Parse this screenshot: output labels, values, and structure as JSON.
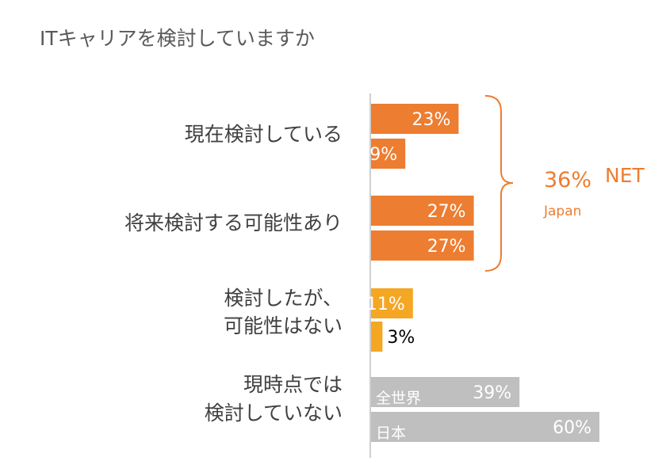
{
  "colors": {
    "orange": "#ED7D31",
    "amber": "#F5A623",
    "gray": "#BFBFBF",
    "axis": "#BFBFBF",
    "text": "#404040",
    "title": "#595959"
  },
  "chart_data": {
    "type": "bar",
    "orientation": "horizontal",
    "title": "ITキャリアを検討していますか",
    "xlim": [
      0,
      60
    ],
    "grid": false,
    "categories": [
      {
        "label": [
          "現在検討している"
        ],
        "color": "orange",
        "bars": [
          {
            "name": "",
            "value": 23,
            "label": "23%"
          },
          {
            "name": "",
            "value": 9,
            "label": "9%"
          }
        ]
      },
      {
        "label": [
          "将来検討する可能性あり"
        ],
        "color": "orange",
        "bars": [
          {
            "name": "",
            "value": 27,
            "label": "27%"
          },
          {
            "name": "",
            "value": 27,
            "label": "27%"
          }
        ]
      },
      {
        "label": [
          "検討したが、",
          "可能性はない"
        ],
        "color": "amber",
        "bars": [
          {
            "name": "",
            "value": 11,
            "label": "11%"
          },
          {
            "name": "",
            "value": 3,
            "label": "3%"
          }
        ]
      },
      {
        "label": [
          "現時点では",
          "検討していない"
        ],
        "color": "gray",
        "bars": [
          {
            "name": "全世界",
            "value": 39,
            "label": "39%"
          },
          {
            "name": "日本",
            "value": 60,
            "label": "60%"
          }
        ]
      }
    ],
    "annotation": {
      "value": "36%",
      "word": "NET",
      "sub": "Japan"
    }
  }
}
